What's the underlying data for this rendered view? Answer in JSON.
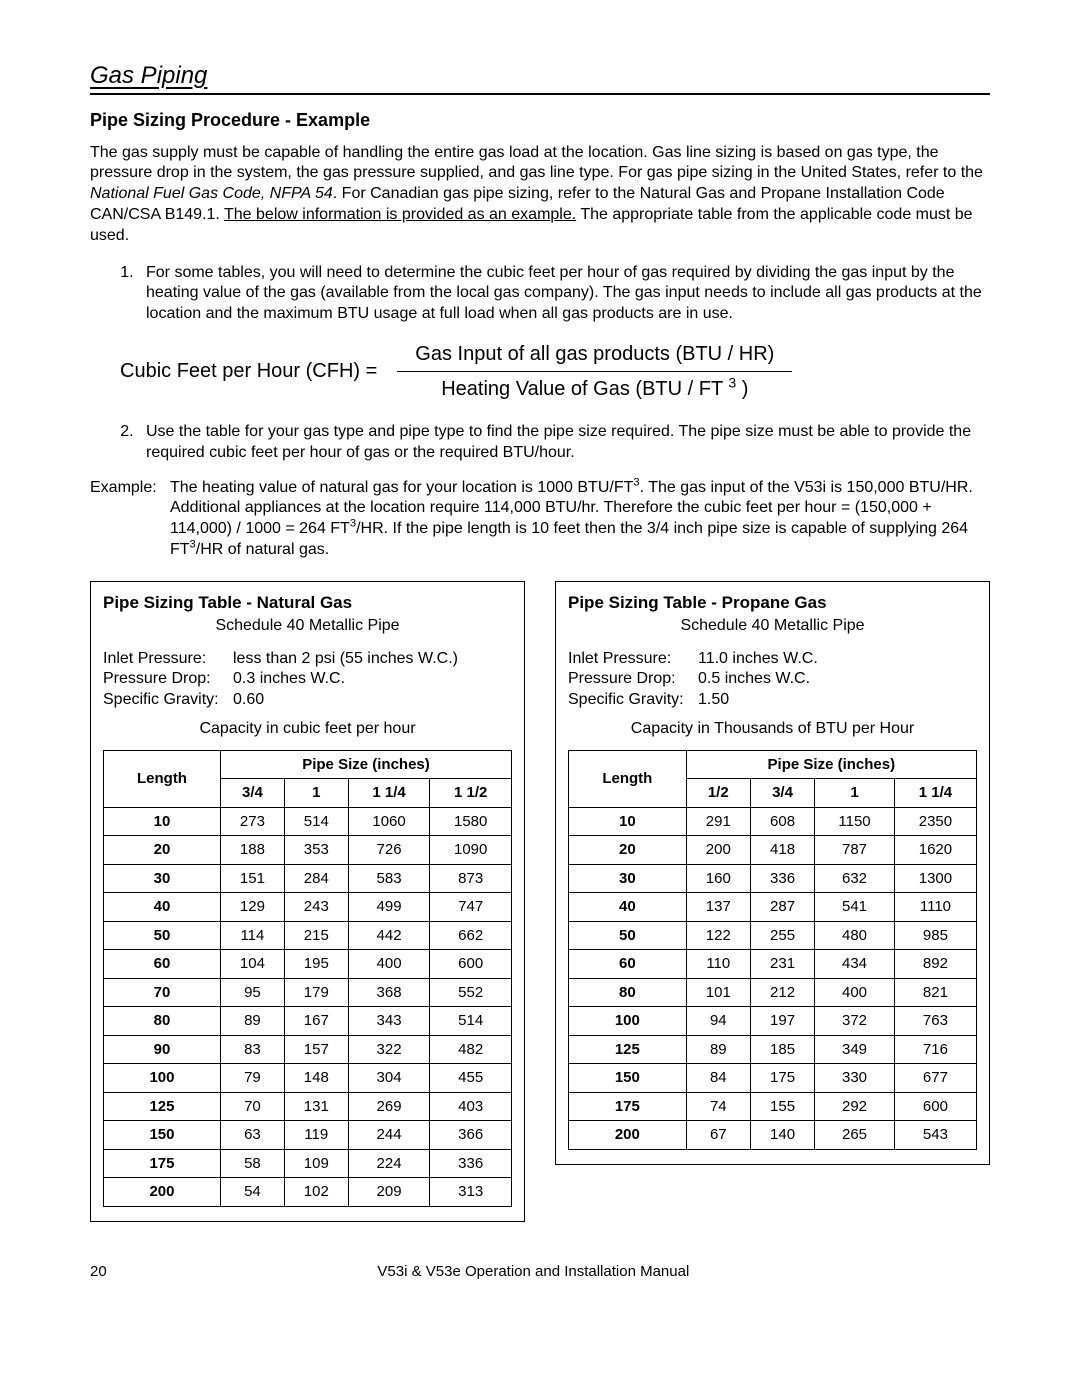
{
  "section_title": "Gas Piping",
  "sub_title": "Pipe Sizing Procedure - Example",
  "intro": {
    "part1": "The gas supply must be capable of handling the entire gas load at the location.  Gas line sizing is based on gas type, the pressure drop in the system, the gas pressure supplied, and gas line type.  For gas pipe sizing in the United States, refer to the ",
    "code_ref": "National Fuel Gas Code, NFPA 54",
    "part2": ".  For Canadian gas pipe sizing, refer to the Natural Gas and Propane Installation Code CAN/CSA B149.1.  ",
    "underlined": "The below information is provided as an example.",
    "part3": "  The appropriate table from the applicable code must be used."
  },
  "step1": "For some tables, you will need to determine the cubic feet per hour of gas required by dividing the gas input by the heating value of the gas (available from the local gas company).  The gas input needs to include all gas products at the location and the maximum BTU usage at full load when all gas products are in use.",
  "formula": {
    "lhs": "Cubic Feet per Hour (CFH) =",
    "numer": "Gas Input of all gas products (BTU / HR)",
    "denom_pre": "Heating Value of Gas (BTU / FT ",
    "denom_sup": "3",
    "denom_post": " )"
  },
  "step2": "Use the table for your gas type and pipe type to find the pipe size required.  The pipe size must be able to provide the required cubic feet per hour of gas or the required BTU/hour.",
  "example": {
    "label": "Example:",
    "p1": "The heating value of natural gas for your location is 1000 BTU/FT",
    "sup1": "3",
    "p2": ".  The gas input of the V53i is 150,000 BTU/HR.  Additional appliances at the location require 114,000 BTU/hr.  Therefore the cubic feet per hour = (150,000 + 114,000) / 1000 = 264 FT",
    "sup2": "3",
    "p3": "/HR.  If the pipe length is 10 feet then the 3/4 inch pipe size is capable of supplying 264 FT",
    "sup3": "3",
    "p4": "/HR of natural gas."
  },
  "natural_gas_table": {
    "title": "Pipe Sizing Table - Natural Gas",
    "subtitle": "Schedule 40 Metallic Pipe",
    "params": {
      "inlet_label": "Inlet Pressure:",
      "inlet_value": "less than 2 psi (55 inches W.C.)",
      "drop_label": "Pressure Drop:",
      "drop_value": "0.3 inches W.C.",
      "grav_label": "Specific Gravity:",
      "grav_value": "0.60"
    },
    "caption": "Capacity in cubic feet per hour",
    "length_header": "Length",
    "size_header": "Pipe Size (inches)",
    "columns": [
      "3/4",
      "1",
      "1 1/4",
      "1 1/2"
    ],
    "rows": [
      [
        "10",
        273,
        514,
        1060,
        1580
      ],
      [
        "20",
        188,
        353,
        726,
        1090
      ],
      [
        "30",
        151,
        284,
        583,
        873
      ],
      [
        "40",
        129,
        243,
        499,
        747
      ],
      [
        "50",
        114,
        215,
        442,
        662
      ],
      [
        "60",
        104,
        195,
        400,
        600
      ],
      [
        "70",
        95,
        179,
        368,
        552
      ],
      [
        "80",
        89,
        167,
        343,
        514
      ],
      [
        "90",
        83,
        157,
        322,
        482
      ],
      [
        "100",
        79,
        148,
        304,
        455
      ],
      [
        "125",
        70,
        131,
        269,
        403
      ],
      [
        "150",
        63,
        119,
        244,
        366
      ],
      [
        "175",
        58,
        109,
        224,
        336
      ],
      [
        "200",
        54,
        102,
        209,
        313
      ]
    ]
  },
  "propane_gas_table": {
    "title": "Pipe Sizing Table - Propane Gas",
    "subtitle": "Schedule 40 Metallic Pipe",
    "params": {
      "inlet_label": "Inlet Pressure:",
      "inlet_value": "11.0 inches W.C.",
      "drop_label": "Pressure Drop:",
      "drop_value": "0.5 inches W.C.",
      "grav_label": "Specific Gravity:",
      "grav_value": "1.50"
    },
    "caption": "Capacity in Thousands of BTU per Hour",
    "length_header": "Length",
    "size_header": "Pipe Size (inches)",
    "columns": [
      "1/2",
      "3/4",
      "1",
      "1 1/4"
    ],
    "rows": [
      [
        "10",
        291,
        608,
        1150,
        2350
      ],
      [
        "20",
        200,
        418,
        787,
        1620
      ],
      [
        "30",
        160,
        336,
        632,
        1300
      ],
      [
        "40",
        137,
        287,
        541,
        1110
      ],
      [
        "50",
        122,
        255,
        480,
        985
      ],
      [
        "60",
        110,
        231,
        434,
        892
      ],
      [
        "80",
        101,
        212,
        400,
        821
      ],
      [
        "100",
        94,
        197,
        372,
        763
      ],
      [
        "125",
        89,
        185,
        349,
        716
      ],
      [
        "150",
        84,
        175,
        330,
        677
      ],
      [
        "175",
        74,
        155,
        292,
        600
      ],
      [
        "200",
        67,
        140,
        265,
        543
      ]
    ]
  },
  "footer": {
    "page": "20",
    "title": "V53i & V53e Operation and Installation Manual"
  }
}
